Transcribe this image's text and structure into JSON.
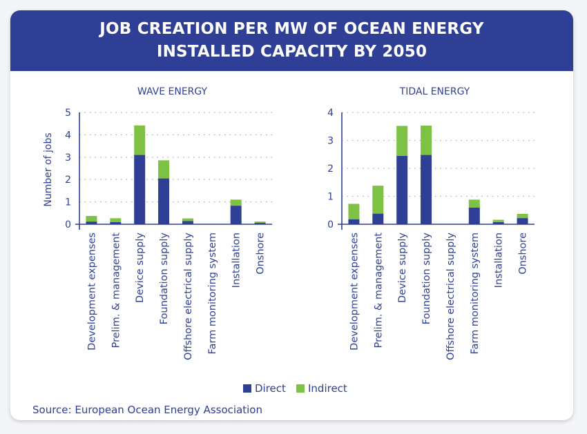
{
  "header": {
    "title_line1": "JOB CREATION PER MW OF OCEAN ENERGY",
    "title_line2": "INSTALLED CAPACITY BY 2050"
  },
  "colors": {
    "brand_blue": "#2e3f95",
    "direct": "#2e3f95",
    "indirect": "#7dc242"
  },
  "legend": {
    "direct_label": "Direct",
    "indirect_label": "Indirect"
  },
  "source": "Source: European Ocean Energy Association",
  "chart_data": [
    {
      "type": "bar",
      "stacked": true,
      "title": "WAVE ENERGY",
      "ylabel": "Number of jobs",
      "xlabel": "",
      "ylim": [
        0,
        5
      ],
      "yticks": [
        0,
        1,
        2,
        3,
        4,
        5
      ],
      "grid": true,
      "categories": [
        "Development expenses",
        "Prelim. & management",
        "Device supply",
        "Foundation supply",
        "Offshore electrical supply",
        "Farm monitoring system",
        "Installation",
        "Onshore"
      ],
      "series": [
        {
          "name": "Direct",
          "values": [
            0.12,
            0.1,
            3.1,
            2.05,
            0.14,
            0,
            0.83,
            0.06
          ]
        },
        {
          "name": "Indirect",
          "values": [
            0.25,
            0.17,
            1.32,
            0.81,
            0.12,
            0,
            0.27,
            0.06
          ]
        }
      ]
    },
    {
      "type": "bar",
      "stacked": true,
      "title": "TIDAL ENERGY",
      "ylabel": "",
      "xlabel": "",
      "ylim": [
        0,
        4
      ],
      "yticks": [
        0,
        1,
        2,
        3,
        4
      ],
      "grid": true,
      "categories": [
        "Development expenses",
        "Prelim. & management",
        "Device supply",
        "Foundation supply",
        "Offshore electrical supply",
        "Farm monitoring system",
        "Installation",
        "Onshore"
      ],
      "series": [
        {
          "name": "Direct",
          "values": [
            0.18,
            0.38,
            2.45,
            2.48,
            0,
            0.6,
            0.08,
            0.22
          ]
        },
        {
          "name": "Indirect",
          "values": [
            0.55,
            1.0,
            1.07,
            1.05,
            0,
            0.28,
            0.08,
            0.15
          ]
        }
      ]
    }
  ]
}
